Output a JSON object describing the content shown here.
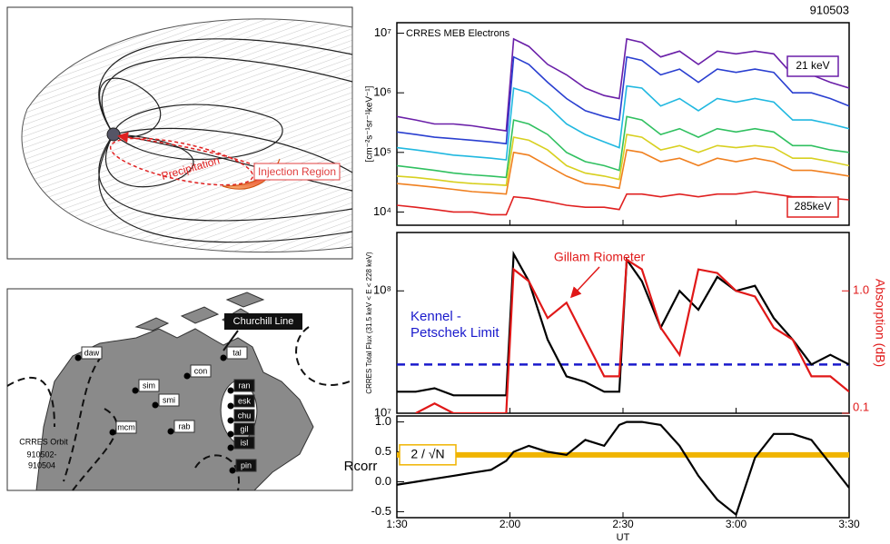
{
  "header": "910503",
  "diagram": {
    "injection_label": "Injection Region",
    "precipitation_label": "Precipitation"
  },
  "map": {
    "callout": "Churchill Line",
    "orbit_label": "CRRES Orbit",
    "orbit_dates": [
      "910502-",
      "910504"
    ],
    "stations": [
      "daw",
      "sim",
      "con",
      "smi",
      "mcm",
      "rab",
      "tal",
      "ran",
      "esk",
      "chu",
      "gil",
      "isl",
      "pin"
    ]
  },
  "chart_data": [
    {
      "type": "line",
      "title": "CRRES MEB Electrons",
      "ylabel": "[cm⁻²s⁻¹sr⁻¹keV⁻¹]",
      "ylog": true,
      "xlim": [
        90,
        210
      ],
      "ylim": [
        6000,
        15000000
      ],
      "yticks": [
        {
          "value": 10000,
          "label": "10⁴"
        },
        {
          "value": 100000,
          "label": "10⁵"
        },
        {
          "value": 1000000,
          "label": "10⁶"
        },
        {
          "value": 10000000,
          "label": "10⁷"
        }
      ],
      "x": [
        90,
        95,
        100,
        105,
        110,
        115,
        119,
        121,
        125,
        130,
        135,
        140,
        145,
        149,
        151,
        155,
        160,
        165,
        170,
        175,
        180,
        185,
        190,
        195,
        200,
        205,
        210
      ],
      "series": [
        {
          "name": "21 keV",
          "color": "#6a1fa8",
          "values": [
            400000.0,
            350000.0,
            300000.0,
            300000.0,
            280000.0,
            250000.0,
            230000.0,
            8000000.0,
            6000000.0,
            3000000.0,
            2000000.0,
            1200000.0,
            900000.0,
            800000.0,
            8000000.0,
            7000000.0,
            4000000.0,
            5000000.0,
            3000000.0,
            5000000.0,
            4500000.0,
            5000000.0,
            4500000.0,
            2000000.0,
            2000000.0,
            1500000.0,
            1200000.0
          ]
        },
        {
          "color": "#2a3fd0",
          "values": [
            220000.0,
            200000.0,
            180000.0,
            170000.0,
            160000.0,
            150000.0,
            140000.0,
            4000000.0,
            3000000.0,
            1500000.0,
            800000.0,
            500000.0,
            400000.0,
            350000.0,
            4000000.0,
            3500000.0,
            2000000.0,
            2500000.0,
            1500000.0,
            2500000.0,
            2200000.0,
            2500000.0,
            2200000.0,
            1000000.0,
            1000000.0,
            800000.0,
            600000.0
          ]
        },
        {
          "color": "#20b8e0",
          "values": [
            120000.0,
            110000.0,
            100000.0,
            90000.0,
            85000.0,
            80000.0,
            75000.0,
            1200000.0,
            1000000.0,
            600000.0,
            300000.0,
            200000.0,
            150000.0,
            120000.0,
            1300000.0,
            1200000.0,
            600000.0,
            800000.0,
            500000.0,
            800000.0,
            700000.0,
            800000.0,
            700000.0,
            350000.0,
            350000.0,
            300000.0,
            250000.0
          ]
        },
        {
          "color": "#30c060",
          "values": [
            60000.0,
            55000.0,
            50000.0,
            45000.0,
            42000.0,
            40000.0,
            38000.0,
            350000.0,
            300000.0,
            200000.0,
            100000.0,
            70000.0,
            60000.0,
            50000.0,
            400000.0,
            350000.0,
            200000.0,
            250000.0,
            180000.0,
            250000.0,
            220000.0,
            250000.0,
            220000.0,
            130000.0,
            130000.0,
            110000.0,
            100000.0
          ]
        },
        {
          "color": "#d8d020",
          "values": [
            40000.0,
            38000.0,
            35000.0,
            32000.0,
            30000.0,
            29000.0,
            28000.0,
            180000.0,
            160000.0,
            110000.0,
            60000.0,
            45000.0,
            40000.0,
            35000.0,
            200000.0,
            180000.0,
            110000.0,
            130000.0,
            100000.0,
            130000.0,
            120000.0,
            130000.0,
            120000.0,
            80000.0,
            80000.0,
            70000.0,
            60000.0
          ]
        },
        {
          "color": "#f08020",
          "values": [
            30000.0,
            28000.0,
            26000.0,
            24000.0,
            22000.0,
            21000.0,
            20000.0,
            100000.0,
            90000.0,
            60000.0,
            40000.0,
            30000.0,
            28000.0,
            25000.0,
            110000.0,
            100000.0,
            70000.0,
            80000.0,
            60000.0,
            80000.0,
            70000.0,
            80000.0,
            70000.0,
            50000.0,
            50000.0,
            45000.0,
            40000.0
          ]
        },
        {
          "name": "285keV",
          "color": "#e02020",
          "values": [
            13000.0,
            12000.0,
            11000.0,
            10000.0,
            10000.0,
            9000.0,
            9000.0,
            18000.0,
            17000.0,
            15000.0,
            13000.0,
            12000.0,
            12000.0,
            11000.0,
            20000.0,
            20000.0,
            18000.0,
            20000.0,
            18000.0,
            20000.0,
            20000.0,
            22000.0,
            20000.0,
            18000.0,
            18000.0,
            17000.0,
            16000.0
          ]
        }
      ]
    },
    {
      "type": "line",
      "ylabel": "CRRES Total Flux (31.5 keV < E < 228 keV)",
      "y2label": "Absorption (dB)",
      "ylog": true,
      "y2log": true,
      "xlim": [
        90,
        210
      ],
      "ylim": [
        10000000,
        300000000
      ],
      "y2lim": [
        0.1,
        3
      ],
      "yticks": [
        {
          "value": 10000000,
          "label": "10⁷"
        },
        {
          "value": 100000000,
          "label": "10⁸"
        }
      ],
      "y2ticks": [
        0.1,
        {
          "value": 1,
          "label": "1.0"
        }
      ],
      "reference": {
        "label": "Kennel - Petschek Limit",
        "value": 25000000,
        "color": "#1a1acc"
      },
      "x": [
        90,
        95,
        100,
        105,
        110,
        115,
        119,
        121,
        125,
        130,
        135,
        140,
        145,
        149,
        151,
        155,
        160,
        165,
        170,
        175,
        180,
        185,
        190,
        195,
        200,
        205,
        210
      ],
      "series": [
        {
          "color": "#000000",
          "values": [
            15000000.0,
            15000000.0,
            16000000.0,
            14000000.0,
            14000000.0,
            14000000.0,
            14000000.0,
            200000000.0,
            120000000.0,
            40000000.0,
            20000000.0,
            18000000.0,
            15000000.0,
            15000000.0,
            180000000.0,
            120000000.0,
            50000000.0,
            100000000.0,
            70000000.0,
            130000000.0,
            100000000.0,
            110000000.0,
            60000000.0,
            40000000.0,
            25000000.0,
            30000000.0,
            25000000.0
          ]
        },
        {
          "name": "Gillam Riometer",
          "color": "#e01818",
          "axis": "y2",
          "values": [
            null,
            0.1,
            0.12,
            0.1,
            0.1,
            0.1,
            0.1,
            1.5,
            1.2,
            0.6,
            0.8,
            0.4,
            0.2,
            0.2,
            1.8,
            1.5,
            0.5,
            0.3,
            1.5,
            1.4,
            1.0,
            0.9,
            0.5,
            0.4,
            0.2,
            0.2,
            0.15
          ]
        }
      ]
    },
    {
      "type": "line",
      "ylabel": "Rcorr",
      "xlabel": "UT",
      "xlim": [
        90,
        210
      ],
      "ylim": [
        -0.6,
        1.1
      ],
      "xticks": [
        {
          "value": 90,
          "label": "1:30"
        },
        {
          "value": 120,
          "label": "2:00"
        },
        {
          "value": 150,
          "label": "2:30"
        },
        {
          "value": 180,
          "label": "3:00"
        },
        {
          "value": 210,
          "label": "3:30"
        }
      ],
      "yticks": [
        -0.5,
        {
          "value": 0,
          "label": "0.0"
        },
        0.5,
        {
          "value": 1,
          "label": "1.0"
        }
      ],
      "threshold": {
        "label": "2 / √N",
        "value": 0.45,
        "color": "#f0b400"
      },
      "x": [
        90,
        95,
        100,
        105,
        110,
        115,
        119,
        121,
        125,
        130,
        135,
        140,
        145,
        149,
        151,
        155,
        160,
        165,
        170,
        175,
        180,
        185,
        190,
        195,
        200,
        205,
        210
      ],
      "series": [
        {
          "color": "#000000",
          "values": [
            -0.05,
            0,
            0.05,
            0.1,
            0.15,
            0.2,
            0.35,
            0.5,
            0.6,
            0.5,
            0.45,
            0.7,
            0.6,
            0.95,
            1.0,
            1.0,
            0.95,
            0.6,
            0.1,
            -0.3,
            -0.55,
            0.4,
            0.8,
            0.8,
            0.7,
            0.3,
            -0.1
          ]
        }
      ]
    }
  ]
}
